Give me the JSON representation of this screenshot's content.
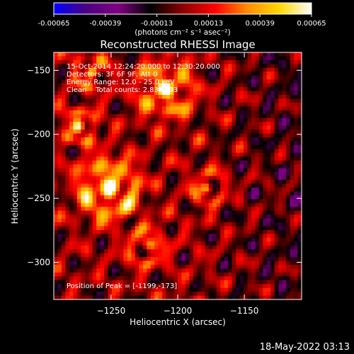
{
  "colorbar": {
    "colors": [
      "#0000ff",
      "#4b0082",
      "#800080",
      "#000000",
      "#8b0000",
      "#ff0000",
      "#ff8c00",
      "#ffd700",
      "#ffffff"
    ],
    "tick_labels": [
      "-0.00065",
      "-0.00039",
      "-0.00013",
      "0.00013",
      "0.00039",
      "0.00065"
    ],
    "range": [
      -0.00065,
      0.00065
    ],
    "units_label": "(photons cm⁻² s⁻¹ asec⁻²)"
  },
  "chart_data": {
    "type": "heatmap",
    "title": "Reconstructed RHESSI Image",
    "xlabel": "Heliocentric X (arcsec)",
    "ylabel": "Heliocentric Y (arcsec)",
    "xlim": [
      -1293,
      -1107
    ],
    "ylim": [
      -329,
      -136
    ],
    "xticks": [
      -1250,
      -1200,
      -1150
    ],
    "yticks": [
      -150,
      -200,
      -250,
      -300
    ],
    "peak": {
      "x": -1199,
      "y": -173
    },
    "annotations": [
      "15-Oct-2014 12:24:20.000 to 12:30:20.000",
      "Detectors: 3F 6F 9F, Att 0",
      "Energy Range: 12.0 - 25.0 keV",
      "Clean    Total counts: 2.83E+03"
    ],
    "peak_label": "Position of Peak = [-1199,-173]"
  },
  "footer": {
    "timestamp": "18-May-2022 03:13"
  }
}
